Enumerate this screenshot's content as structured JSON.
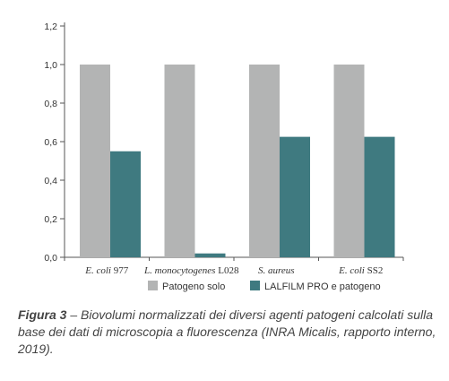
{
  "chart_data": {
    "type": "bar",
    "categories": [
      [
        "E. coli",
        " 977"
      ],
      [
        "L. monocytogenes",
        " L028"
      ],
      [
        "S. aureus",
        ""
      ],
      [
        "E. coli",
        " SS2"
      ]
    ],
    "series": [
      {
        "name": "Patogeno solo",
        "values": [
          1.0,
          1.0,
          1.0,
          1.0
        ]
      },
      {
        "name": "LALFILM PRO e patogeno",
        "values": [
          0.55,
          0.02,
          0.625,
          0.625
        ]
      }
    ],
    "ylim": [
      0,
      1.2
    ],
    "yticks": [
      0,
      0.2,
      0.4,
      0.6,
      0.8,
      1.0,
      1.2
    ],
    "ytick_labels": [
      "0,0",
      "0,2",
      "0,4",
      "0,6",
      "0,8",
      "1,0",
      "1,2"
    ],
    "legend_position": "bottom",
    "grid": false,
    "colors": {
      "series1": "#b3b4b4",
      "series2": "#3f7a80",
      "axis": "#555555"
    }
  },
  "caption": {
    "bold": "Figura 3",
    "text": " – Biovolumi normalizzati dei diversi agenti patogeni calcolati sulla base dei dati di microscopia a fluorescenza (INRA Micalis, rapporto interno, 2019)."
  }
}
